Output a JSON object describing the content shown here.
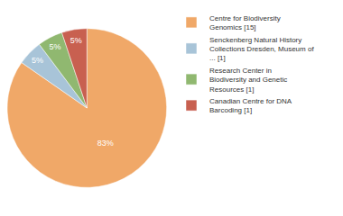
{
  "chart_data": {
    "type": "pie",
    "categories": [
      "Centre for Biodiversity\nGenomics [15]",
      "Senckenberg Natural History\nCollections Dresden, Museum of\n... [1]",
      "Research Center in\nBiodiversity and Genetic\nResources [1]",
      "Canadian Centre for DNA\nBarcoding [1]"
    ],
    "values": [
      83,
      5,
      5,
      5
    ],
    "value_labels": [
      "83%",
      "5%",
      "5%",
      "5%"
    ],
    "colors": [
      "#f0a868",
      "#a8c4d8",
      "#90b870",
      "#c86050"
    ],
    "data_labels": true,
    "legend": "right",
    "background_color": "#ffffff",
    "text_color": "#333333"
  }
}
